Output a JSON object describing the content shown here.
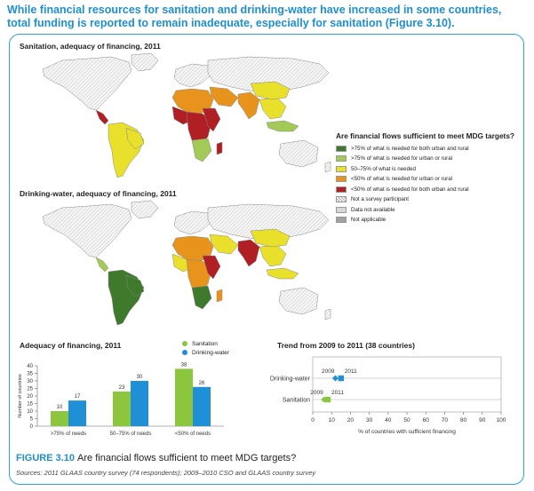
{
  "headline": "While financial resources for sanitation and drinking-water have increased in some countries, total funding is reported to remain inadequate, especially for sanitation (Figure 3.10).",
  "maps": {
    "sanitation_title": "Sanitation, adequacy of financing, 2011",
    "drinking_title": "Drinking-water, adequacy of financing, 2011"
  },
  "legend": {
    "title": "Are financial flows sufficient to meet MDG targets?",
    "items": [
      {
        "label": ">75% of what is needed for both urban and rural",
        "color": "#3f7a2c"
      },
      {
        "label": ">75% of what is needed for urban or rural",
        "color": "#a3c957"
      },
      {
        "label": "50–75% of what is needed",
        "color": "#e8e02a"
      },
      {
        "label": "<50% of what is needed for urban or rural",
        "color": "#e8941c"
      },
      {
        "label": "<50% of what is needed for both urban and rural",
        "color": "#b01f24"
      },
      {
        "label": "Not a survey participant",
        "color": "hatch"
      },
      {
        "label": "Data not available",
        "color": "#d6d6d6"
      },
      {
        "label": "Not applicable",
        "color": "#a0a0a0"
      }
    ]
  },
  "series_legend": {
    "sanitation": "Sanitation",
    "drinking": "Drinking-water",
    "sanitation_color": "#8cc63f",
    "drinking_color": "#1f8fd6"
  },
  "chart_data": [
    {
      "type": "bar",
      "title": "Adequacy of financing, 2011",
      "categories": [
        ">75% of needs",
        "50–75% of needs",
        "<50% of needs"
      ],
      "series": [
        {
          "name": "Sanitation",
          "values": [
            10,
            23,
            38
          ],
          "color": "#8cc63f"
        },
        {
          "name": "Drinking-water",
          "values": [
            17,
            30,
            26
          ],
          "color": "#1f8fd6"
        }
      ],
      "ylabel": "Number of countries",
      "ylim": [
        0,
        40
      ],
      "yticks": [
        0,
        5,
        10,
        15,
        20,
        25,
        30,
        35,
        40
      ]
    },
    {
      "type": "scatter",
      "title": "Trend from 2009 to 2011 (38 countries)",
      "categories": [
        "Drinking-water",
        "Sanitation"
      ],
      "points": [
        {
          "category": "Drinking-water",
          "year": "2009",
          "value": 12,
          "marker": "diamond",
          "color": "#1f8fd6"
        },
        {
          "category": "Drinking-water",
          "year": "2011",
          "value": 15,
          "marker": "square",
          "color": "#1f8fd6"
        },
        {
          "category": "Sanitation",
          "year": "2009",
          "value": 6,
          "marker": "diamond",
          "color": "#8cc63f"
        },
        {
          "category": "Sanitation",
          "year": "2011",
          "value": 8,
          "marker": "square",
          "color": "#8cc63f"
        }
      ],
      "xlabel": "% of countries with sufficient financing",
      "xlim": [
        0,
        100
      ],
      "xticks": [
        0,
        10,
        20,
        30,
        40,
        50,
        60,
        70,
        80,
        90,
        100
      ]
    }
  ],
  "caption": {
    "figure": "FIGURE 3.10",
    "text": "Are financial flows sufficient to meet MDG targets?"
  },
  "source": "Sources: 2011 GLAAS country survey (74 respondents); 2009–2010 CSO and GLAAS country survey"
}
